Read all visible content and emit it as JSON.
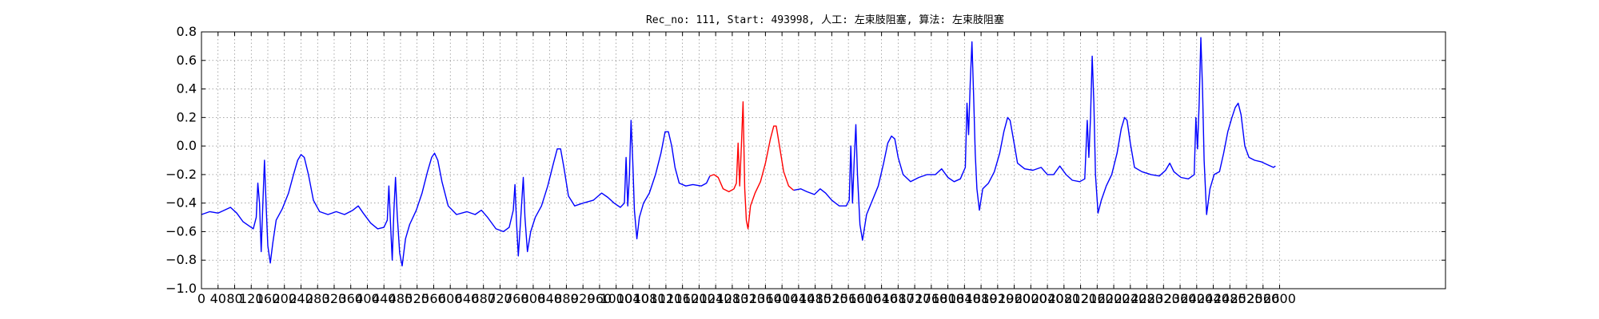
{
  "chart_data": {
    "type": "line",
    "title": "Rec_no: 111, Start: 493998, 人工: 左束肢阻塞, 算法: 左束肢阻塞",
    "xlabel": "",
    "ylabel": "",
    "xlim": [
      0,
      3000
    ],
    "ylim": [
      -1.0,
      0.8
    ],
    "grid": true,
    "x_ticks": [
      0,
      40,
      80,
      120,
      160,
      200,
      240,
      280,
      320,
      360,
      400,
      440,
      480,
      520,
      560,
      600,
      640,
      680,
      720,
      760,
      800,
      840,
      880,
      920,
      960,
      1000,
      1040,
      1080,
      1120,
      1160,
      1200,
      1240,
      1280,
      1320,
      1360,
      1400,
      1440,
      1480,
      1520,
      1560,
      1600,
      1640,
      1680,
      1720,
      1760,
      1800,
      1840,
      1880,
      1920,
      1960,
      2000,
      2040,
      2080,
      2120,
      2160,
      2200,
      2240,
      2280,
      2320,
      2360,
      2400,
      2440,
      2480,
      2520,
      2560,
      2600
    ],
    "y_ticks": [
      -1.0,
      -0.8,
      -0.6,
      -0.4,
      -0.2,
      0.0,
      0.2,
      0.4,
      0.6,
      0.8
    ],
    "y_tick_labels": [
      "−1.0",
      "−0.8",
      "−0.6",
      "−0.4",
      "−0.2",
      "0.0",
      "0.2",
      "0.4",
      "0.6",
      "0.8"
    ],
    "series": [
      {
        "color": "#0000ff",
        "segment": "before",
        "points": [
          [
            0,
            -0.48
          ],
          [
            20,
            -0.46
          ],
          [
            40,
            -0.47
          ],
          [
            55,
            -0.45
          ],
          [
            70,
            -0.43
          ],
          [
            85,
            -0.47
          ],
          [
            100,
            -0.53
          ],
          [
            115,
            -0.56
          ],
          [
            125,
            -0.58
          ],
          [
            132,
            -0.5
          ],
          [
            136,
            -0.26
          ],
          [
            140,
            -0.4
          ],
          [
            144,
            -0.74
          ],
          [
            148,
            -0.4
          ],
          [
            152,
            -0.1
          ],
          [
            156,
            -0.42
          ],
          [
            160,
            -0.7
          ],
          [
            166,
            -0.82
          ],
          [
            172,
            -0.68
          ],
          [
            180,
            -0.52
          ],
          [
            195,
            -0.44
          ],
          [
            210,
            -0.33
          ],
          [
            222,
            -0.2
          ],
          [
            232,
            -0.1
          ],
          [
            240,
            -0.06
          ],
          [
            248,
            -0.08
          ],
          [
            258,
            -0.2
          ],
          [
            270,
            -0.38
          ],
          [
            285,
            -0.46
          ],
          [
            305,
            -0.48
          ],
          [
            325,
            -0.46
          ],
          [
            345,
            -0.48
          ],
          [
            365,
            -0.45
          ],
          [
            378,
            -0.42
          ],
          [
            390,
            -0.47
          ],
          [
            408,
            -0.54
          ],
          [
            425,
            -0.58
          ],
          [
            440,
            -0.57
          ],
          [
            448,
            -0.52
          ],
          [
            452,
            -0.28
          ],
          [
            456,
            -0.55
          ],
          [
            460,
            -0.8
          ],
          [
            464,
            -0.45
          ],
          [
            468,
            -0.22
          ],
          [
            472,
            -0.48
          ],
          [
            478,
            -0.75
          ],
          [
            484,
            -0.84
          ],
          [
            492,
            -0.65
          ],
          [
            502,
            -0.55
          ],
          [
            518,
            -0.45
          ],
          [
            532,
            -0.33
          ],
          [
            545,
            -0.18
          ],
          [
            555,
            -0.08
          ],
          [
            562,
            -0.05
          ],
          [
            570,
            -0.1
          ],
          [
            580,
            -0.25
          ],
          [
            595,
            -0.42
          ],
          [
            615,
            -0.48
          ],
          [
            640,
            -0.46
          ],
          [
            660,
            -0.48
          ],
          [
            675,
            -0.45
          ],
          [
            690,
            -0.5
          ],
          [
            710,
            -0.58
          ],
          [
            728,
            -0.6
          ],
          [
            742,
            -0.57
          ],
          [
            752,
            -0.45
          ],
          [
            756,
            -0.27
          ],
          [
            760,
            -0.55
          ],
          [
            764,
            -0.77
          ],
          [
            770,
            -0.5
          ],
          [
            776,
            -0.22
          ],
          [
            780,
            -0.5
          ],
          [
            786,
            -0.74
          ],
          [
            794,
            -0.6
          ],
          [
            805,
            -0.5
          ],
          [
            820,
            -0.42
          ],
          [
            835,
            -0.28
          ],
          [
            848,
            -0.13
          ],
          [
            858,
            -0.02
          ],
          [
            866,
            -0.02
          ],
          [
            874,
            -0.15
          ],
          [
            885,
            -0.35
          ],
          [
            900,
            -0.42
          ],
          [
            920,
            -0.4
          ],
          [
            945,
            -0.38
          ],
          [
            965,
            -0.33
          ],
          [
            980,
            -0.36
          ],
          [
            995,
            -0.4
          ],
          [
            1010,
            -0.43
          ],
          [
            1020,
            -0.4
          ],
          [
            1024,
            -0.08
          ],
          [
            1028,
            -0.42
          ],
          [
            1032,
            -0.2
          ],
          [
            1036,
            0.18
          ],
          [
            1040,
            -0.1
          ],
          [
            1044,
            -0.45
          ],
          [
            1050,
            -0.65
          ],
          [
            1056,
            -0.5
          ],
          [
            1066,
            -0.4
          ],
          [
            1080,
            -0.33
          ],
          [
            1095,
            -0.2
          ],
          [
            1108,
            -0.05
          ],
          [
            1118,
            0.1
          ],
          [
            1126,
            0.1
          ],
          [
            1134,
            0.0
          ],
          [
            1142,
            -0.15
          ],
          [
            1152,
            -0.26
          ],
          [
            1168,
            -0.28
          ],
          [
            1185,
            -0.27
          ],
          [
            1205,
            -0.28
          ],
          [
            1218,
            -0.26
          ],
          [
            1226,
            -0.21
          ]
        ]
      },
      {
        "color": "#ff0000",
        "segment": "highlight",
        "points": [
          [
            1226,
            -0.21
          ],
          [
            1236,
            -0.2
          ],
          [
            1246,
            -0.22
          ],
          [
            1258,
            -0.3
          ],
          [
            1272,
            -0.32
          ],
          [
            1284,
            -0.3
          ],
          [
            1290,
            -0.26
          ],
          [
            1294,
            0.02
          ],
          [
            1298,
            -0.28
          ],
          [
            1302,
            0.0
          ],
          [
            1306,
            0.31
          ],
          [
            1310,
            -0.3
          ],
          [
            1314,
            -0.52
          ],
          [
            1318,
            -0.58
          ],
          [
            1324,
            -0.42
          ],
          [
            1335,
            -0.33
          ],
          [
            1348,
            -0.25
          ],
          [
            1360,
            -0.12
          ],
          [
            1372,
            0.05
          ],
          [
            1380,
            0.14
          ],
          [
            1386,
            0.14
          ],
          [
            1394,
            0.0
          ],
          [
            1404,
            -0.18
          ],
          [
            1416,
            -0.28
          ],
          [
            1428,
            -0.31
          ]
        ]
      },
      {
        "color": "#0000ff",
        "segment": "after",
        "points": [
          [
            1428,
            -0.31
          ],
          [
            1445,
            -0.3
          ],
          [
            1460,
            -0.32
          ],
          [
            1478,
            -0.34
          ],
          [
            1492,
            -0.3
          ],
          [
            1505,
            -0.33
          ],
          [
            1520,
            -0.38
          ],
          [
            1538,
            -0.42
          ],
          [
            1555,
            -0.42
          ],
          [
            1562,
            -0.38
          ],
          [
            1566,
            0.0
          ],
          [
            1570,
            -0.4
          ],
          [
            1574,
            -0.1
          ],
          [
            1578,
            0.15
          ],
          [
            1582,
            -0.2
          ],
          [
            1588,
            -0.55
          ],
          [
            1594,
            -0.66
          ],
          [
            1604,
            -0.48
          ],
          [
            1618,
            -0.38
          ],
          [
            1632,
            -0.28
          ],
          [
            1645,
            -0.12
          ],
          [
            1655,
            0.02
          ],
          [
            1664,
            0.07
          ],
          [
            1672,
            0.05
          ],
          [
            1680,
            -0.08
          ],
          [
            1692,
            -0.2
          ],
          [
            1710,
            -0.25
          ],
          [
            1730,
            -0.22
          ],
          [
            1750,
            -0.2
          ],
          [
            1770,
            -0.2
          ],
          [
            1785,
            -0.16
          ],
          [
            1800,
            -0.22
          ],
          [
            1815,
            -0.25
          ],
          [
            1830,
            -0.23
          ],
          [
            1842,
            -0.15
          ],
          [
            1846,
            0.3
          ],
          [
            1850,
            0.08
          ],
          [
            1854,
            0.45
          ],
          [
            1858,
            0.73
          ],
          [
            1862,
            0.35
          ],
          [
            1866,
            -0.05
          ],
          [
            1870,
            -0.3
          ],
          [
            1876,
            -0.45
          ],
          [
            1884,
            -0.3
          ],
          [
            1898,
            -0.26
          ],
          [
            1912,
            -0.18
          ],
          [
            1925,
            -0.05
          ],
          [
            1935,
            0.1
          ],
          [
            1944,
            0.2
          ],
          [
            1950,
            0.18
          ],
          [
            1958,
            0.05
          ],
          [
            1968,
            -0.12
          ],
          [
            1985,
            -0.16
          ],
          [
            2005,
            -0.17
          ],
          [
            2025,
            -0.15
          ],
          [
            2040,
            -0.2
          ],
          [
            2055,
            -0.2
          ],
          [
            2070,
            -0.14
          ],
          [
            2085,
            -0.2
          ],
          [
            2100,
            -0.24
          ],
          [
            2118,
            -0.25
          ],
          [
            2130,
            -0.23
          ],
          [
            2136,
            0.18
          ],
          [
            2140,
            -0.08
          ],
          [
            2144,
            0.2
          ],
          [
            2148,
            0.63
          ],
          [
            2152,
            0.3
          ],
          [
            2156,
            -0.2
          ],
          [
            2162,
            -0.47
          ],
          [
            2170,
            -0.38
          ],
          [
            2182,
            -0.28
          ],
          [
            2195,
            -0.2
          ],
          [
            2208,
            -0.05
          ],
          [
            2218,
            0.12
          ],
          [
            2226,
            0.2
          ],
          [
            2232,
            0.18
          ],
          [
            2240,
            0.02
          ],
          [
            2250,
            -0.15
          ],
          [
            2268,
            -0.18
          ],
          [
            2290,
            -0.2
          ],
          [
            2310,
            -0.21
          ],
          [
            2325,
            -0.17
          ],
          [
            2335,
            -0.12
          ],
          [
            2345,
            -0.18
          ],
          [
            2362,
            -0.22
          ],
          [
            2380,
            -0.23
          ],
          [
            2394,
            -0.2
          ],
          [
            2398,
            0.2
          ],
          [
            2402,
            -0.02
          ],
          [
            2406,
            0.3
          ],
          [
            2410,
            0.76
          ],
          [
            2414,
            0.4
          ],
          [
            2418,
            -0.1
          ],
          [
            2424,
            -0.48
          ],
          [
            2432,
            -0.3
          ],
          [
            2442,
            -0.2
          ],
          [
            2455,
            -0.18
          ],
          [
            2465,
            -0.05
          ],
          [
            2475,
            0.1
          ],
          [
            2485,
            0.2
          ],
          [
            2493,
            0.27
          ],
          [
            2500,
            0.3
          ],
          [
            2507,
            0.22
          ],
          [
            2516,
            0.0
          ],
          [
            2526,
            -0.08
          ],
          [
            2540,
            -0.1
          ],
          [
            2555,
            -0.11
          ],
          [
            2570,
            -0.13
          ],
          [
            2585,
            -0.15
          ],
          [
            2590,
            -0.14
          ]
        ]
      }
    ]
  }
}
